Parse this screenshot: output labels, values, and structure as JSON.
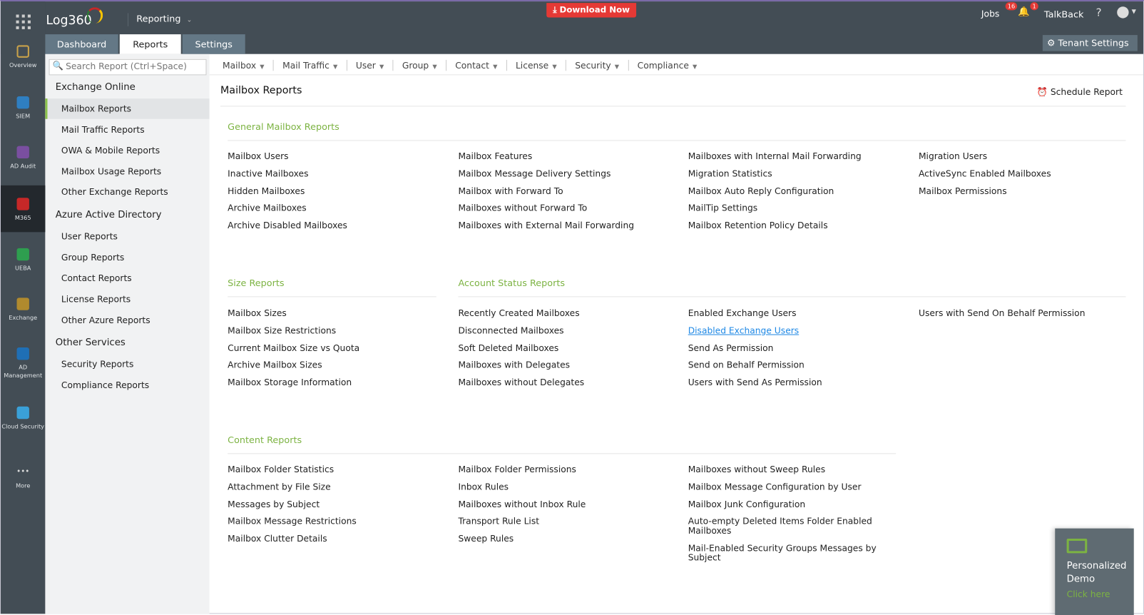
{
  "header": {
    "app_name": "Log360",
    "module": "Reporting",
    "download": "Download Now",
    "jobs": "Jobs",
    "jobs_count": "16",
    "notif_count": "1",
    "talkback": "TalkBack",
    "help": "?",
    "tenant_settings": "Tenant Settings"
  },
  "tabs": [
    {
      "label": "Dashboard"
    },
    {
      "label": "Reports",
      "active": true
    },
    {
      "label": "Settings"
    }
  ],
  "rail": [
    {
      "label": "Overview",
      "icon": "grid-icon",
      "color": "#c9a24a"
    },
    {
      "label": "SIEM",
      "icon": "shield-icon",
      "color": "#2f7fc1"
    },
    {
      "label": "AD Audit",
      "icon": "magnifier-icon",
      "color": "#7a4fa0"
    },
    {
      "label": "M365",
      "icon": "office-icon",
      "color": "#c62828",
      "active": true
    },
    {
      "label": "UEBA",
      "icon": "eye-icon",
      "color": "#2e9e4f"
    },
    {
      "label": "Exchange",
      "icon": "envelope-icon",
      "color": "#b08a2e"
    },
    {
      "label": "AD Management",
      "icon": "triangle-icon",
      "color": "#1f6fb5"
    },
    {
      "label": "Cloud Security",
      "icon": "cloud-icon",
      "color": "#3aa0d8"
    },
    {
      "label": "More",
      "icon": "more-icon",
      "color": "transparent"
    }
  ],
  "search": {
    "placeholder": "Search Report (Ctrl+Space)"
  },
  "sidebar": [
    {
      "type": "h",
      "label": "Exchange Online"
    },
    {
      "type": "i",
      "label": "Mailbox Reports",
      "active": true
    },
    {
      "type": "i",
      "label": "Mail Traffic Reports"
    },
    {
      "type": "i",
      "label": "OWA & Mobile Reports"
    },
    {
      "type": "i",
      "label": "Mailbox Usage Reports"
    },
    {
      "type": "i",
      "label": "Other Exchange Reports"
    },
    {
      "type": "h",
      "label": "Azure Active Directory"
    },
    {
      "type": "i",
      "label": "User Reports"
    },
    {
      "type": "i",
      "label": "Group Reports"
    },
    {
      "type": "i",
      "label": "Contact Reports"
    },
    {
      "type": "i",
      "label": "License Reports"
    },
    {
      "type": "i",
      "label": "Other Azure Reports"
    },
    {
      "type": "h",
      "label": "Other Services"
    },
    {
      "type": "i",
      "label": "Security Reports"
    },
    {
      "type": "i",
      "label": "Compliance Reports"
    }
  ],
  "menus": [
    "Mailbox",
    "Mail Traffic",
    "User",
    "Group",
    "Contact",
    "License",
    "Security",
    "Compliance"
  ],
  "page_title": "Mailbox Reports",
  "schedule_report": "Schedule Report",
  "sections": [
    {
      "title": "General Mailbox Reports",
      "columns": [
        [
          "Mailbox Users",
          "Inactive Mailboxes",
          "Hidden Mailboxes",
          "Archive Mailboxes",
          "Archive Disabled Mailboxes"
        ],
        [
          "Mailbox Features",
          "Mailbox Message Delivery Settings",
          "Mailbox with Forward To",
          "Mailboxes without Forward To",
          "Mailboxes with External Mail Forwarding"
        ],
        [
          "Mailboxes with Internal Mail Forwarding",
          "Migration Statistics",
          "Mailbox Auto Reply Configuration",
          "MailTip Settings",
          "Mailbox Retention Policy Details"
        ],
        [
          "Migration Users",
          "ActiveSync Enabled Mailboxes",
          "Mailbox Permissions"
        ]
      ]
    },
    {
      "title": "Size Reports",
      "columns": [
        [
          "Mailbox Sizes",
          "Mailbox Size Restrictions",
          "Current Mailbox Size vs Quota",
          "Archive Mailbox Sizes",
          "Mailbox Storage Information"
        ]
      ]
    },
    {
      "title": "Account Status Reports",
      "columns": [
        [
          "Recently Created Mailboxes",
          "Disconnected Mailboxes",
          "Soft Deleted Mailboxes",
          "Mailboxes with Delegates",
          "Mailboxes without Delegates"
        ],
        [
          "Enabled Exchange Users",
          "Disabled Exchange Users",
          "Send As Permission",
          "Send on Behalf Permission",
          "Users with Send As Permission"
        ],
        [
          "Users with Send On Behalf Permission"
        ]
      ]
    },
    {
      "title": "Content Reports",
      "columns": [
        [
          "Mailbox Folder Statistics",
          "Attachment by File Size",
          "Messages by Subject",
          "Mailbox Message Restrictions",
          "Mailbox Clutter Details"
        ],
        [
          "Mailbox Folder Permissions",
          "Inbox Rules",
          "Mailboxes without Inbox Rule",
          "Transport Rule List",
          "Sweep Rules"
        ],
        [
          "Mailboxes without Sweep Rules",
          "Mailbox Message Configuration by User",
          "Mailbox Junk Configuration",
          "Auto-empty Deleted Items Folder Enabled Mailboxes",
          "Mail-Enabled Security Groups Messages by Subject"
        ]
      ]
    }
  ],
  "hovered_link": "Disabled Exchange Users",
  "demo": {
    "title": "Personalized Demo",
    "cta": "Click here"
  },
  "colors": {
    "accent": "#7cb342",
    "topbar": "#434d55",
    "download": "#e53935",
    "link": "#1e88e5"
  }
}
